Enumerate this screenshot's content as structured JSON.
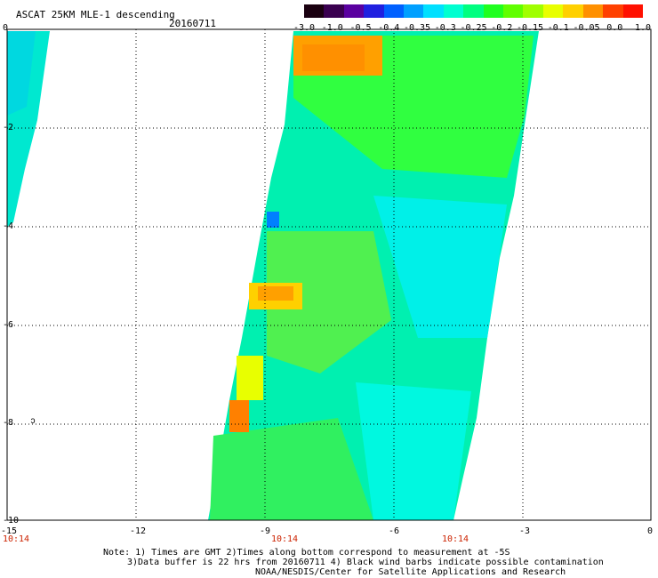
{
  "header": {
    "title": "ASCAT 25KM MLE-1 descending",
    "date": "20160711"
  },
  "colorbar": {
    "labels": [
      "-3.0",
      "-1.0",
      "-0.5",
      "-0.4",
      "-0.35",
      "-0.3",
      "-0.25",
      "-0.2",
      "-0.15",
      "-0.1",
      "-0.05",
      "0.0",
      "1.0"
    ],
    "colors": [
      "#1a0010",
      "#3a0050",
      "#5a00a0",
      "#2020e0",
      "#0060ff",
      "#00a0ff",
      "#00e0ff",
      "#00ffd0",
      "#00ff80",
      "#20ff20",
      "#60ff00",
      "#a0ff00",
      "#e8ff00",
      "#ffd000",
      "#ff9000",
      "#ff4000",
      "#ff1000"
    ]
  },
  "map": {
    "x_ticks": [
      "-15",
      "-12",
      "-9",
      "-6",
      "-3",
      "0"
    ],
    "y_ticks": [
      "0",
      "-2",
      "-4",
      "-6",
      "-8",
      "-10"
    ],
    "times": [
      "10:14",
      "10:14",
      "10:14"
    ],
    "wind_barb_symbol": "ↄ"
  },
  "notes": {
    "line1": "Note: 1) Times are GMT 2)Times along bottom correspond to measurement at -5S",
    "line2": "3)Data buffer is 22 hrs from 20160711 4) Black wind barbs indicate possible contamination",
    "line3": "NOAA/NESDIS/Center for Satellite Applications and Research"
  }
}
